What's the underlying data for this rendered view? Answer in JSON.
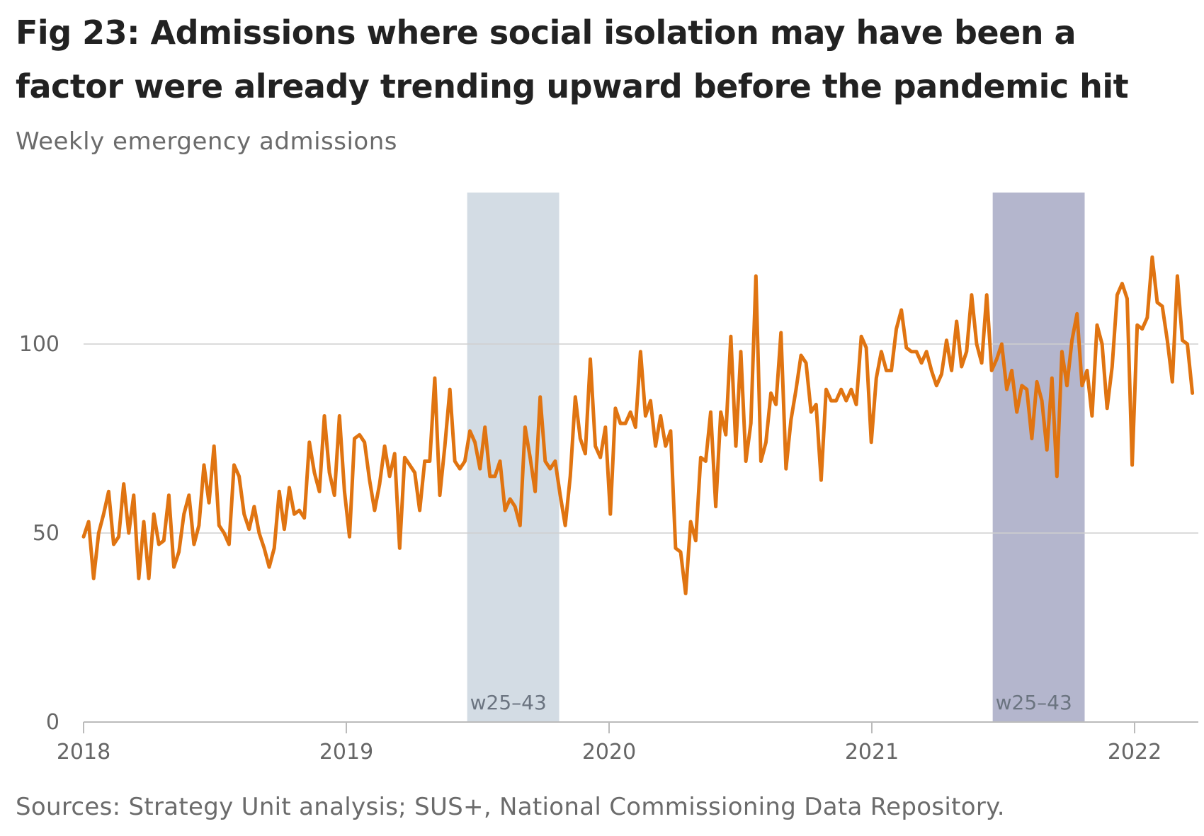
{
  "chart_data": {
    "type": "line",
    "title": "Fig 23: Admissions where social isolation may have been a factor were already trending upward before the pandemic hit",
    "subtitle": "Weekly emergency admissions",
    "source": "Sources: Strategy Unit analysis; SUS+, National Commissioning Data Repository.",
    "x_start_year": 2018,
    "x_end_year": 2022.22,
    "xticks": [
      {
        "value": 2018,
        "label": "2018"
      },
      {
        "value": 2019,
        "label": "2019"
      },
      {
        "value": 2020,
        "label": "2020"
      },
      {
        "value": 2021,
        "label": "2021"
      },
      {
        "value": 2022,
        "label": "2022"
      }
    ],
    "ylim": [
      0,
      125
    ],
    "yticks": [
      {
        "value": 0,
        "label": "0"
      },
      {
        "value": 50,
        "label": "50"
      },
      {
        "value": 100,
        "label": "100"
      }
    ],
    "grid": true,
    "bands": [
      {
        "label": "w25–43",
        "start": 2019.46,
        "end": 2019.81,
        "color": "#d3dce4"
      },
      {
        "label": "w25–43",
        "start": 2021.46,
        "end": 2021.81,
        "color": "#b4b6cd"
      }
    ],
    "series": [
      {
        "color": "#e07411",
        "values": [
          49,
          53,
          38,
          50,
          55,
          61,
          47,
          49,
          63,
          50,
          60,
          38,
          53,
          38,
          55,
          47,
          48,
          60,
          41,
          45,
          55,
          60,
          47,
          52,
          68,
          58,
          73,
          52,
          50,
          47,
          68,
          65,
          55,
          51,
          57,
          50,
          46,
          41,
          46,
          61,
          51,
          62,
          55,
          56,
          54,
          74,
          66,
          61,
          81,
          66,
          60,
          81,
          61,
          49,
          75,
          76,
          74,
          64,
          56,
          63,
          73,
          65,
          71,
          46,
          70,
          68,
          66,
          56,
          69,
          69,
          91,
          60,
          73,
          88,
          69,
          67,
          69,
          77,
          74,
          67,
          78,
          65,
          65,
          69,
          56,
          59,
          57,
          52,
          78,
          70,
          61,
          86,
          69,
          67,
          69,
          60,
          52,
          65,
          86,
          75,
          71,
          96,
          73,
          70,
          78,
          55,
          83,
          79,
          79,
          82,
          78,
          98,
          81,
          85,
          73,
          81,
          73,
          77,
          46,
          45,
          34,
          53,
          48,
          70,
          69,
          82,
          57,
          82,
          76,
          102,
          73,
          98,
          69,
          79,
          118,
          69,
          74,
          87,
          84,
          103,
          67,
          80,
          88,
          97,
          95,
          82,
          84,
          64,
          88,
          85,
          85,
          88,
          85,
          88,
          84,
          102,
          99,
          74,
          91,
          98,
          93,
          93,
          104,
          109,
          99,
          98,
          98,
          95,
          98,
          93,
          89,
          92,
          101,
          93,
          106,
          94,
          98,
          113,
          100,
          95,
          113,
          93,
          96,
          100,
          88,
          93,
          82,
          89,
          88,
          75,
          90,
          85,
          72,
          91,
          65,
          98,
          89,
          101,
          108,
          89,
          93,
          81,
          105,
          100,
          83,
          94,
          113,
          116,
          112,
          68,
          105,
          104,
          107,
          123,
          111,
          110,
          101,
          90,
          118,
          101,
          100,
          87
        ]
      }
    ]
  }
}
